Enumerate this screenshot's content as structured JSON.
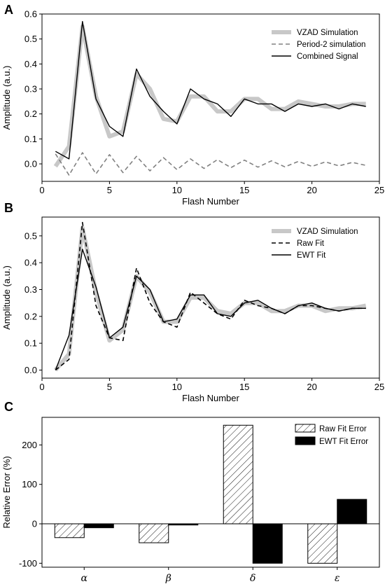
{
  "chart_data": [
    {
      "panel": "A",
      "type": "line",
      "xlabel": "Flash Number",
      "ylabel": "Amplitude (a.u.)",
      "xlim": [
        0,
        25
      ],
      "ylim": [
        -0.07,
        0.6
      ],
      "xticks": [
        0,
        5,
        10,
        15,
        20,
        25
      ],
      "yticks": [
        0.0,
        0.1,
        0.2,
        0.3,
        0.4,
        0.5,
        0.6
      ],
      "ytick_labels": [
        "0.0",
        "0.1",
        "0.2",
        "0.3",
        "0.4",
        "0.5",
        "0.6"
      ],
      "legend_position": "top-right",
      "x": [
        1,
        2,
        3,
        4,
        5,
        6,
        7,
        8,
        9,
        10,
        11,
        12,
        13,
        14,
        15,
        16,
        17,
        18,
        19,
        20,
        21,
        22,
        23,
        24
      ],
      "series": [
        {
          "name": "VZAD Simulation",
          "style": "thick-gray",
          "color": "#c8c8c8",
          "values": [
            -0.01,
            0.07,
            0.55,
            0.27,
            0.11,
            0.13,
            0.36,
            0.3,
            0.18,
            0.17,
            0.27,
            0.27,
            0.21,
            0.21,
            0.26,
            0.26,
            0.22,
            0.22,
            0.25,
            0.24,
            0.23,
            0.23,
            0.24,
            0.24
          ]
        },
        {
          "name": "Period-2 simulation",
          "style": "dashed",
          "color": "#808080",
          "values": [
            0.04,
            -0.045,
            0.045,
            -0.04,
            0.037,
            -0.035,
            0.03,
            -0.028,
            0.025,
            -0.023,
            0.02,
            -0.018,
            0.017,
            -0.015,
            0.015,
            -0.013,
            0.012,
            -0.012,
            0.01,
            -0.01,
            0.008,
            -0.008,
            0.006,
            -0.006
          ]
        },
        {
          "name": "Combined Signal",
          "style": "solid",
          "color": "#000000",
          "values": [
            0.05,
            0.02,
            0.57,
            0.26,
            0.15,
            0.11,
            0.38,
            0.27,
            0.21,
            0.16,
            0.3,
            0.26,
            0.24,
            0.19,
            0.26,
            0.24,
            0.24,
            0.21,
            0.24,
            0.23,
            0.24,
            0.22,
            0.24,
            0.23
          ]
        }
      ]
    },
    {
      "panel": "B",
      "type": "line",
      "xlabel": "Flash Number",
      "ylabel": "Amplitude (a.u.)",
      "xlim": [
        0,
        25
      ],
      "ylim": [
        -0.03,
        0.57
      ],
      "xticks": [
        0,
        5,
        10,
        15,
        20,
        25
      ],
      "yticks": [
        0.0,
        0.1,
        0.2,
        0.3,
        0.4,
        0.5
      ],
      "ytick_labels": [
        "0.0",
        "0.1",
        "0.2",
        "0.3",
        "0.4",
        "0.5"
      ],
      "legend_position": "top-right",
      "x": [
        1,
        2,
        3,
        4,
        5,
        6,
        7,
        8,
        9,
        10,
        11,
        12,
        13,
        14,
        15,
        16,
        17,
        18,
        19,
        20,
        21,
        22,
        23,
        24
      ],
      "series": [
        {
          "name": "VZAD Simulation",
          "style": "thick-gray",
          "color": "#c8c8c8",
          "values": [
            0.0,
            0.06,
            0.53,
            0.29,
            0.11,
            0.15,
            0.35,
            0.29,
            0.18,
            0.18,
            0.27,
            0.27,
            0.22,
            0.21,
            0.25,
            0.25,
            0.22,
            0.22,
            0.24,
            0.24,
            0.22,
            0.23,
            0.23,
            0.24
          ]
        },
        {
          "name": "Raw Fit",
          "style": "dashed",
          "color": "#000000",
          "values": [
            0.0,
            0.04,
            0.55,
            0.24,
            0.12,
            0.11,
            0.38,
            0.25,
            0.18,
            0.16,
            0.29,
            0.25,
            0.21,
            0.19,
            0.26,
            0.24,
            0.23,
            0.21,
            0.24,
            0.24,
            0.23,
            0.22,
            0.23,
            0.23
          ]
        },
        {
          "name": "EWT Fit",
          "style": "solid",
          "color": "#000000",
          "values": [
            0.0,
            0.13,
            0.45,
            0.31,
            0.12,
            0.16,
            0.35,
            0.3,
            0.18,
            0.19,
            0.28,
            0.28,
            0.21,
            0.2,
            0.25,
            0.26,
            0.23,
            0.21,
            0.24,
            0.25,
            0.23,
            0.22,
            0.23,
            0.23
          ]
        }
      ]
    },
    {
      "panel": "C",
      "type": "bar",
      "ylabel": "Relative Error (%)",
      "ylim": [
        -110,
        270
      ],
      "yticks": [
        -100,
        0,
        100,
        200
      ],
      "ytick_labels": [
        "-100",
        "0",
        "100",
        "200"
      ],
      "categories": [
        "α",
        "β",
        "δ",
        "ε"
      ],
      "legend_position": "top-right",
      "series": [
        {
          "name": "Raw Fit Error",
          "style": "hatched",
          "values": [
            -35,
            -48,
            250,
            -100
          ]
        },
        {
          "name": "EWT Fit Error",
          "style": "solid-black",
          "values": [
            -10,
            -3,
            -100,
            62
          ]
        }
      ]
    }
  ]
}
